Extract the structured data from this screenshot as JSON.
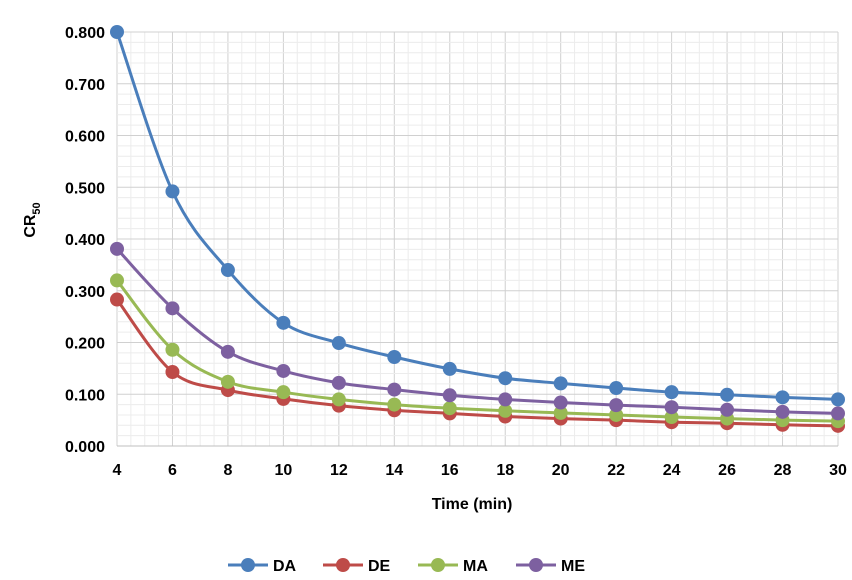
{
  "chart_data": {
    "type": "line",
    "xlabel": "Time (min)",
    "ylabel": {
      "base": "CR",
      "subscript": "50"
    },
    "x": [
      4,
      6,
      8,
      10,
      12,
      14,
      16,
      18,
      20,
      22,
      24,
      26,
      28,
      30
    ],
    "xlim": [
      4,
      30
    ],
    "ylim": [
      0,
      0.8
    ],
    "xticks": [
      "4",
      "6",
      "8",
      "10",
      "12",
      "14",
      "16",
      "18",
      "20",
      "22",
      "24",
      "26",
      "28",
      "30"
    ],
    "yticks": [
      "0.000",
      "0.100",
      "0.200",
      "0.300",
      "0.400",
      "0.500",
      "0.600",
      "0.700",
      "0.800"
    ],
    "grid": true,
    "smooth": true,
    "legend_position": "bottom",
    "series": [
      {
        "name": "DA",
        "color": "#4a7ebb",
        "values": [
          0.8,
          0.492,
          0.34,
          0.238,
          0.199,
          0.172,
          0.149,
          0.131,
          0.121,
          0.112,
          0.104,
          0.099,
          0.094,
          0.09
        ]
      },
      {
        "name": "DE",
        "color": "#be4b48",
        "values": [
          0.283,
          0.143,
          0.108,
          0.091,
          0.078,
          0.069,
          0.063,
          0.057,
          0.053,
          0.05,
          0.046,
          0.044,
          0.041,
          0.039
        ]
      },
      {
        "name": "MA",
        "color": "#98b954",
        "values": [
          0.32,
          0.186,
          0.124,
          0.104,
          0.09,
          0.08,
          0.073,
          0.068,
          0.064,
          0.06,
          0.056,
          0.053,
          0.05,
          0.048
        ]
      },
      {
        "name": "ME",
        "color": "#7d60a0",
        "values": [
          0.381,
          0.266,
          0.182,
          0.145,
          0.122,
          0.109,
          0.098,
          0.09,
          0.084,
          0.079,
          0.075,
          0.07,
          0.066,
          0.063
        ]
      }
    ]
  }
}
